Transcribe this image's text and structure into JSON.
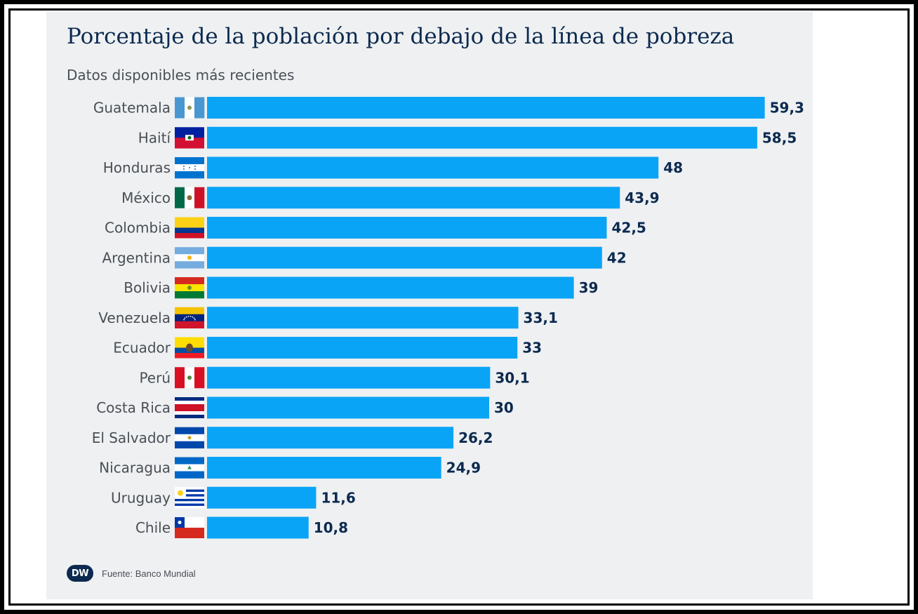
{
  "title": "Porcentaje de la población por debajo de la línea de pobreza",
  "subtitle": "Datos disponibles más recientes",
  "footer": {
    "logo": "DW",
    "source": "Fuente: Banco Mundial"
  },
  "colors": {
    "bar": "#0aa4f6",
    "value_label": "#0c2a4f",
    "category_label": "#4a4f55"
  },
  "chart_data": {
    "type": "bar",
    "orientation": "horizontal",
    "categories": [
      "Guatemala",
      "Haití",
      "Honduras",
      "México",
      "Colombia",
      "Argentina",
      "Bolivia",
      "Venezuela",
      "Ecuador",
      "Perú",
      "Costa Rica",
      "El Salvador",
      "Nicaragua",
      "Uruguay",
      "Chile"
    ],
    "values": [
      59.3,
      58.5,
      48,
      43.9,
      42.5,
      42,
      39,
      33.1,
      33,
      30.1,
      30,
      26.2,
      24.9,
      11.6,
      10.8
    ],
    "value_labels": [
      "59,3",
      "58,5",
      "48",
      "43,9",
      "42,5",
      "42",
      "39",
      "33,1",
      "33",
      "30,1",
      "30",
      "26,2",
      "24,9",
      "11,6",
      "10,8"
    ],
    "flags": [
      "guatemala-flag",
      "haiti-flag",
      "honduras-flag",
      "mexico-flag",
      "colombia-flag",
      "argentina-flag",
      "bolivia-flag",
      "venezuela-flag",
      "ecuador-flag",
      "peru-flag",
      "costa-rica-flag",
      "el-salvador-flag",
      "nicaragua-flag",
      "uruguay-flag",
      "chile-flag"
    ],
    "xlim": [
      0,
      60
    ],
    "grid": false,
    "legend": "none"
  }
}
